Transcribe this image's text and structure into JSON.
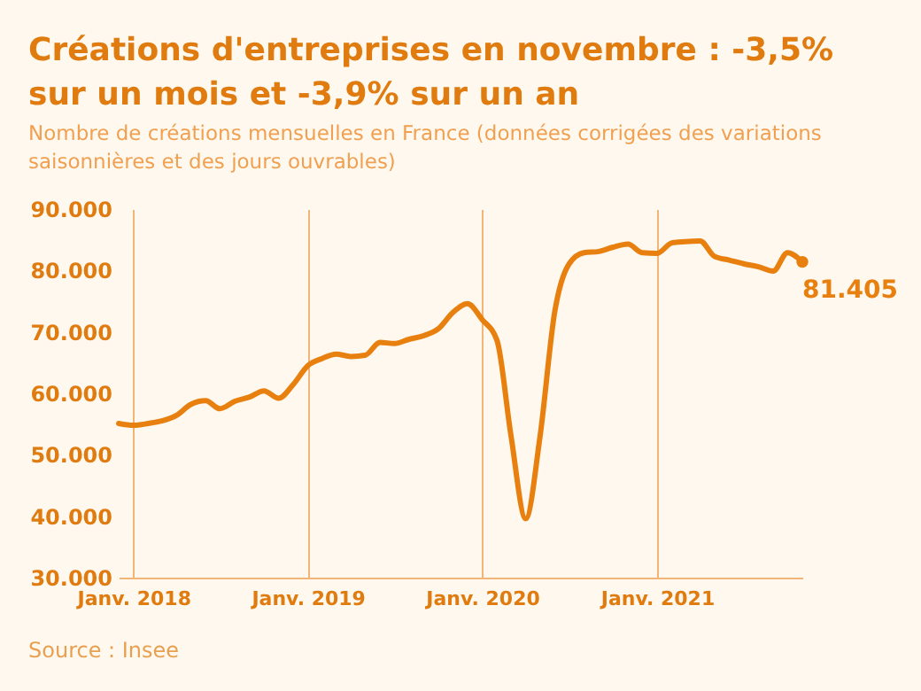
{
  "chart_data": {
    "type": "line",
    "title": "Créations d'entreprises en novembre : -3,5% sur un mois et -3,9% sur un an",
    "subtitle": "Nombre de créations mensuelles en France (données corrigées des variations saisonnières et des jours ouvrables)",
    "x": [
      "2017-12",
      "2018-01",
      "2018-02",
      "2018-03",
      "2018-04",
      "2018-05",
      "2018-06",
      "2018-07",
      "2018-08",
      "2018-09",
      "2018-10",
      "2018-11",
      "2018-12",
      "2019-01",
      "2019-02",
      "2019-03",
      "2019-04",
      "2019-05",
      "2019-06",
      "2019-07",
      "2019-08",
      "2019-09",
      "2019-10",
      "2019-11",
      "2019-12",
      "2020-01",
      "2020-02",
      "2020-03",
      "2020-04",
      "2020-05",
      "2020-06",
      "2020-07",
      "2020-08",
      "2020-09",
      "2020-10",
      "2020-11",
      "2020-12",
      "2021-01",
      "2021-02",
      "2021-03",
      "2021-04",
      "2021-05",
      "2021-06",
      "2021-07",
      "2021-08",
      "2021-09",
      "2021-10",
      "2021-11"
    ],
    "series": [
      {
        "color": "#e8800f",
        "values": [
          55100,
          54800,
          55100,
          55500,
          56400,
          58200,
          58800,
          57500,
          58700,
          59400,
          60400,
          59200,
          61400,
          64500,
          65700,
          66400,
          66000,
          66200,
          68300,
          68100,
          68800,
          69400,
          70500,
          73200,
          74600,
          72000,
          68600,
          53200,
          39600,
          53000,
          73400,
          81100,
          82900,
          83100,
          83800,
          84300,
          82900,
          82800,
          84500,
          84700,
          84800,
          82300,
          81700,
          81100,
          80600,
          79900,
          82900,
          81405
        ]
      }
    ],
    "xticks": [
      {
        "value": "2018-01",
        "label": "Janv. 2018"
      },
      {
        "value": "2019-01",
        "label": "Janv. 2019"
      },
      {
        "value": "2020-01",
        "label": "Janv. 2020"
      },
      {
        "value": "2021-01",
        "label": "Janv. 2021"
      }
    ],
    "ylim": [
      30000,
      90000
    ],
    "xlim": [
      "2017-12",
      "2021-11"
    ],
    "yticks": [
      {
        "value": 30000,
        "label": "30.000"
      },
      {
        "value": 40000,
        "label": "40.000"
      },
      {
        "value": 50000,
        "label": "50.000"
      },
      {
        "value": 60000,
        "label": "60.000"
      },
      {
        "value": 70000,
        "label": "70.000"
      },
      {
        "value": 80000,
        "label": "80.000"
      },
      {
        "value": 90000,
        "label": "90.000"
      }
    ],
    "grid": "x",
    "marker": "none",
    "line_style": "solid",
    "annotations": [
      {
        "text": "81.405",
        "x": "2021-11",
        "y": 81405
      },
      "Source : Insee"
    ]
  }
}
